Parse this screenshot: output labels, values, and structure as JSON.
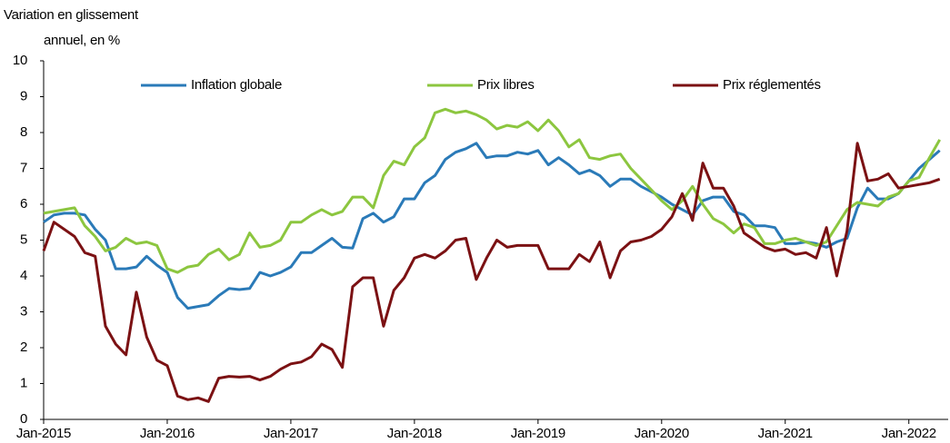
{
  "chart_data": {
    "type": "line",
    "ylabel": [
      "Variation en glissement",
      "annuel, en %"
    ],
    "categories": [
      "Jan-2015",
      null,
      null,
      null,
      null,
      null,
      null,
      null,
      null,
      null,
      null,
      null,
      "Jan-2016",
      null,
      null,
      null,
      null,
      null,
      null,
      null,
      null,
      null,
      null,
      null,
      "Jan-2017",
      null,
      null,
      null,
      null,
      null,
      null,
      null,
      null,
      null,
      null,
      null,
      "Jan-2018",
      null,
      null,
      null,
      null,
      null,
      null,
      null,
      null,
      null,
      null,
      null,
      "Jan-2019",
      null,
      null,
      null,
      null,
      null,
      null,
      null,
      null,
      null,
      null,
      null,
      "Jan-2020",
      null,
      null,
      null,
      null,
      null,
      null,
      null,
      null,
      null,
      null,
      null,
      "Jan-2021",
      null,
      null,
      null,
      null,
      null,
      null,
      null,
      null,
      null,
      null,
      null,
      "Jan-2022",
      null,
      null,
      null
    ],
    "ylim": [
      0,
      10
    ],
    "yticks": [
      0,
      1,
      2,
      3,
      4,
      5,
      6,
      7,
      8,
      9,
      10
    ],
    "grid": false,
    "legend": "top",
    "series": [
      {
        "name": "Inflation globale",
        "color": "#2a7ab8",
        "values": [
          5.5,
          5.7,
          5.75,
          5.75,
          5.7,
          5.3,
          5.0,
          4.2,
          4.2,
          4.25,
          4.55,
          4.3,
          4.1,
          3.4,
          3.1,
          3.15,
          3.2,
          3.45,
          3.65,
          3.62,
          3.65,
          4.1,
          4.0,
          4.1,
          4.25,
          4.65,
          4.65,
          4.85,
          5.05,
          4.8,
          4.78,
          5.6,
          5.75,
          5.5,
          5.65,
          6.15,
          6.15,
          6.6,
          6.8,
          7.25,
          7.45,
          7.55,
          7.7,
          7.3,
          7.35,
          7.35,
          7.45,
          7.4,
          7.5,
          7.1,
          7.3,
          7.1,
          6.85,
          6.95,
          6.8,
          6.5,
          6.7,
          6.7,
          6.5,
          6.35,
          6.2,
          6.0,
          5.85,
          5.7,
          6.1,
          6.2,
          6.2,
          5.8,
          5.7,
          5.4,
          5.4,
          5.35,
          4.9,
          4.9,
          4.95,
          4.9,
          4.8,
          4.95,
          5.05,
          5.9,
          6.45,
          6.15,
          6.15,
          6.3,
          6.65,
          7.0,
          7.25,
          7.5
        ]
      },
      {
        "name": "Prix libres",
        "color": "#8cc63f",
        "values": [
          5.75,
          5.8,
          5.85,
          5.9,
          5.4,
          5.1,
          4.7,
          4.8,
          5.05,
          4.9,
          4.95,
          4.85,
          4.2,
          4.1,
          4.25,
          4.3,
          4.6,
          4.75,
          4.45,
          4.6,
          5.2,
          4.8,
          4.85,
          5.0,
          5.5,
          5.5,
          5.7,
          5.85,
          5.7,
          5.8,
          6.2,
          6.2,
          5.9,
          6.8,
          7.2,
          7.1,
          7.6,
          7.85,
          8.55,
          8.65,
          8.55,
          8.6,
          8.5,
          8.35,
          8.1,
          8.2,
          8.15,
          8.3,
          8.05,
          8.35,
          8.05,
          7.6,
          7.8,
          7.3,
          7.25,
          7.35,
          7.4,
          7.0,
          6.7,
          6.4,
          6.1,
          5.85,
          6.1,
          6.5,
          6.0,
          5.6,
          5.45,
          5.2,
          5.45,
          5.35,
          4.9,
          4.9,
          5.0,
          5.05,
          4.95,
          4.85,
          4.95,
          5.4,
          5.85,
          6.05,
          6.0,
          5.95,
          6.2,
          6.3,
          6.65,
          6.75,
          7.3,
          7.8
        ]
      },
      {
        "name": "Prix réglementés",
        "color": "#7b1113",
        "values": [
          4.7,
          5.5,
          5.3,
          5.1,
          4.65,
          4.55,
          2.6,
          2.1,
          1.8,
          3.55,
          2.3,
          1.65,
          1.5,
          0.65,
          0.55,
          0.6,
          0.5,
          1.15,
          1.2,
          1.18,
          1.2,
          1.1,
          1.2,
          1.4,
          1.55,
          1.6,
          1.75,
          2.1,
          1.95,
          1.45,
          3.7,
          3.95,
          3.95,
          2.6,
          3.6,
          3.95,
          4.5,
          4.6,
          4.5,
          4.7,
          5.0,
          5.05,
          3.9,
          4.5,
          5.0,
          4.8,
          4.85,
          4.85,
          4.85,
          4.2,
          4.2,
          4.2,
          4.6,
          4.4,
          4.95,
          3.95,
          4.7,
          4.95,
          5.0,
          5.1,
          5.3,
          5.65,
          6.3,
          5.55,
          7.15,
          6.45,
          6.45,
          5.95,
          5.2,
          5.0,
          4.8,
          4.7,
          4.75,
          4.6,
          4.65,
          4.5,
          5.35,
          4.0,
          5.25,
          7.7,
          6.65,
          6.7,
          6.85,
          6.45,
          6.5,
          6.55,
          6.6,
          6.7
        ]
      }
    ]
  }
}
